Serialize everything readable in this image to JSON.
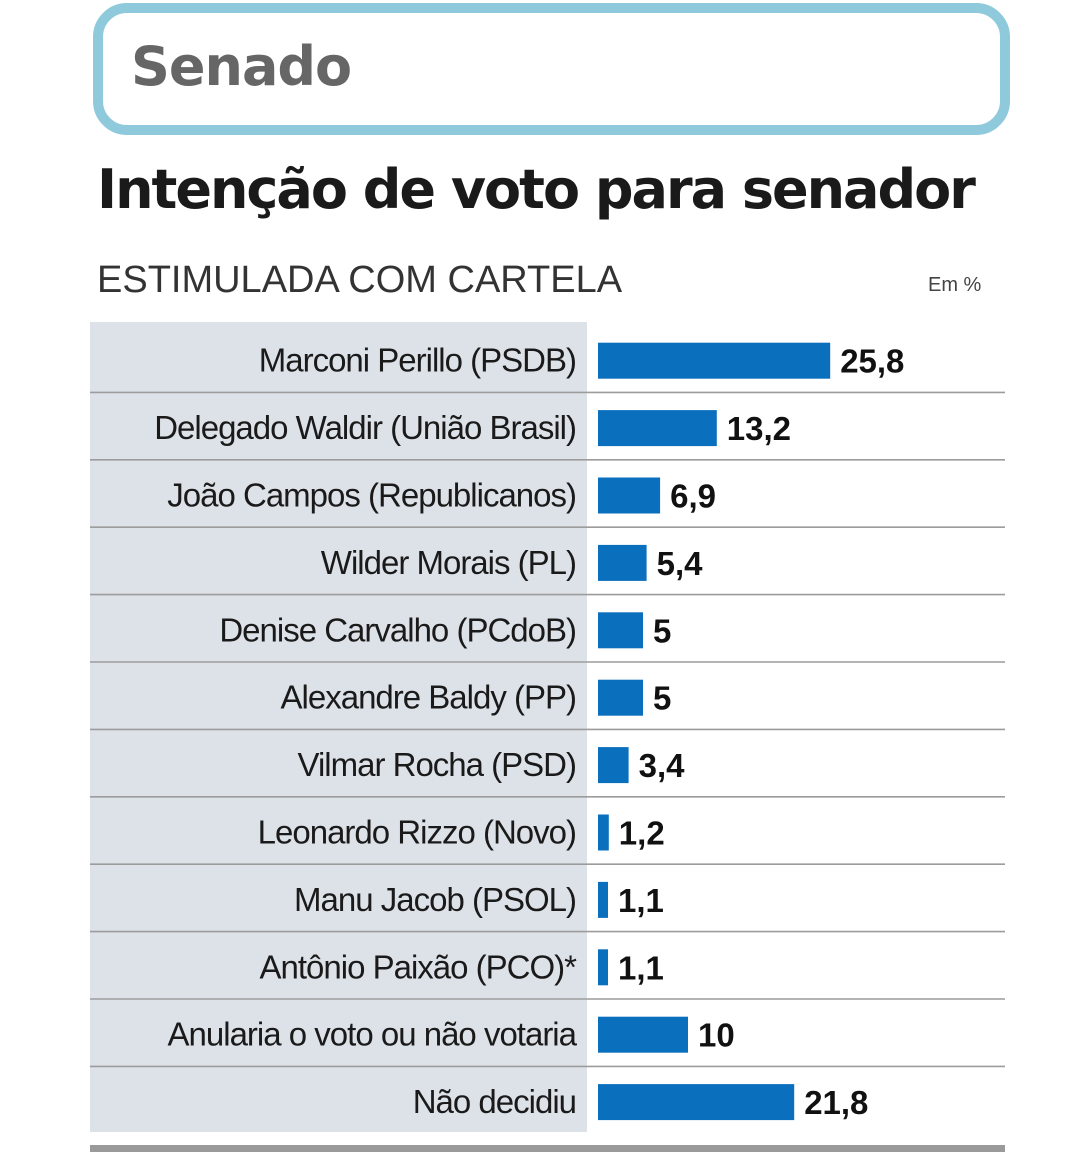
{
  "header": {
    "section": "Senado"
  },
  "title": "Intenção de voto para senador",
  "subtitle": "ESTIMULADA COM CARTELA",
  "unit": "Em %",
  "colors": {
    "bar": "#0a6fbd",
    "header_border": "#8ec9dc",
    "label_bg": "#dde2e8"
  },
  "chart_data": {
    "type": "bar",
    "orientation": "horizontal",
    "title": "Intenção de voto para senador",
    "subtitle": "ESTIMULADA COM CARTELA",
    "unit": "Em %",
    "categories": [
      "Marconi Perillo (PSDB)",
      "Delegado Waldir (União Brasil)",
      "João Campos (Republicanos)",
      "Wilder Morais (PL)",
      "Denise Carvalho (PCdoB)",
      "Alexandre Baldy (PP)",
      "Vilmar Rocha (PSD)",
      "Leonardo Rizzo (Novo)",
      "Manu Jacob (PSOL)",
      "Antônio Paixão (PCO)*",
      "Anularia o voto ou não votaria",
      "Não decidiu"
    ],
    "values": [
      25.8,
      13.2,
      6.9,
      5.4,
      5,
      5,
      3.4,
      1.2,
      1.1,
      1.1,
      10,
      21.8
    ],
    "value_labels": [
      "25,8",
      "13,2",
      "6,9",
      "5,4",
      "5",
      "5",
      "3,4",
      "1,2",
      "1,1",
      "1,1",
      "10",
      "21,8"
    ],
    "grid": false,
    "legend": "none"
  }
}
